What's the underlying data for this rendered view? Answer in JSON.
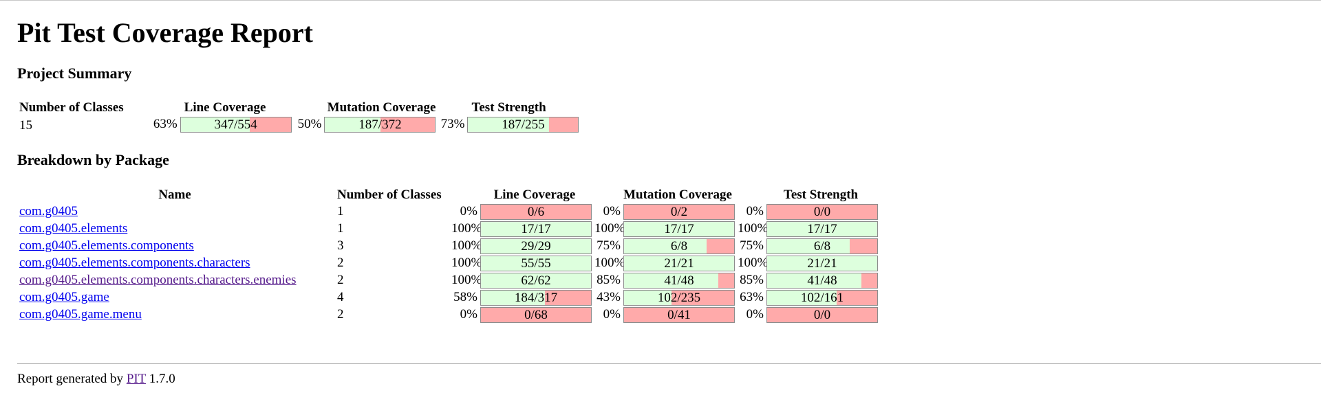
{
  "title": "Pit Test Coverage Report",
  "project_summary": {
    "heading": "Project Summary",
    "headers": {
      "classes": "Number of Classes",
      "line": "Line Coverage",
      "mutation": "Mutation Coverage",
      "strength": "Test Strength"
    },
    "classes": "15",
    "line": {
      "pct": "63%",
      "text": "347/554",
      "covered": 347,
      "total": 554
    },
    "mutation": {
      "pct": "50%",
      "text": "187/372",
      "covered": 187,
      "total": 372
    },
    "strength": {
      "pct": "73%",
      "text": "187/255",
      "covered": 187,
      "total": 255
    }
  },
  "breakdown": {
    "heading": "Breakdown by Package",
    "headers": {
      "name": "Name",
      "classes": "Number of Classes",
      "line": "Line Coverage",
      "mutation": "Mutation Coverage",
      "strength": "Test Strength"
    },
    "rows": [
      {
        "name": "com.g0405",
        "visited": false,
        "classes": "1",
        "line": {
          "pct": "0%",
          "text": "0/6",
          "covered": 0,
          "total": 6
        },
        "mutation": {
          "pct": "0%",
          "text": "0/2",
          "covered": 0,
          "total": 2
        },
        "strength": {
          "pct": "0%",
          "text": "0/0",
          "covered": 0,
          "total": 0
        }
      },
      {
        "name": "com.g0405.elements",
        "visited": false,
        "classes": "1",
        "line": {
          "pct": "100%",
          "text": "17/17",
          "covered": 17,
          "total": 17
        },
        "mutation": {
          "pct": "100%",
          "text": "17/17",
          "covered": 17,
          "total": 17
        },
        "strength": {
          "pct": "100%",
          "text": "17/17",
          "covered": 17,
          "total": 17
        }
      },
      {
        "name": "com.g0405.elements.components",
        "visited": false,
        "classes": "3",
        "line": {
          "pct": "100%",
          "text": "29/29",
          "covered": 29,
          "total": 29
        },
        "mutation": {
          "pct": "75%",
          "text": "6/8",
          "covered": 6,
          "total": 8
        },
        "strength": {
          "pct": "75%",
          "text": "6/8",
          "covered": 6,
          "total": 8
        }
      },
      {
        "name": "com.g0405.elements.components.characters",
        "visited": false,
        "classes": "2",
        "line": {
          "pct": "100%",
          "text": "55/55",
          "covered": 55,
          "total": 55
        },
        "mutation": {
          "pct": "100%",
          "text": "21/21",
          "covered": 21,
          "total": 21
        },
        "strength": {
          "pct": "100%",
          "text": "21/21",
          "covered": 21,
          "total": 21
        }
      },
      {
        "name": "com.g0405.elements.components.characters.enemies",
        "visited": true,
        "classes": "2",
        "line": {
          "pct": "100%",
          "text": "62/62",
          "covered": 62,
          "total": 62
        },
        "mutation": {
          "pct": "85%",
          "text": "41/48",
          "covered": 41,
          "total": 48
        },
        "strength": {
          "pct": "85%",
          "text": "41/48",
          "covered": 41,
          "total": 48
        }
      },
      {
        "name": "com.g0405.game",
        "visited": false,
        "classes": "4",
        "line": {
          "pct": "58%",
          "text": "184/317",
          "covered": 184,
          "total": 317
        },
        "mutation": {
          "pct": "43%",
          "text": "102/235",
          "covered": 102,
          "total": 235
        },
        "strength": {
          "pct": "63%",
          "text": "102/161",
          "covered": 102,
          "total": 161
        }
      },
      {
        "name": "com.g0405.game.menu",
        "visited": false,
        "classes": "2",
        "line": {
          "pct": "0%",
          "text": "0/68",
          "covered": 0,
          "total": 68
        },
        "mutation": {
          "pct": "0%",
          "text": "0/41",
          "covered": 0,
          "total": 41
        },
        "strength": {
          "pct": "0%",
          "text": "0/0",
          "covered": 0,
          "total": 0
        }
      }
    ]
  },
  "footer": {
    "prefix": "Report generated by",
    "link": "PIT",
    "version": "1.7.0"
  },
  "colors": {
    "covered": "#ddffdd",
    "uncovered": "#ffaaaa",
    "link": "#0000ee",
    "visited_link": "#551a8b"
  }
}
